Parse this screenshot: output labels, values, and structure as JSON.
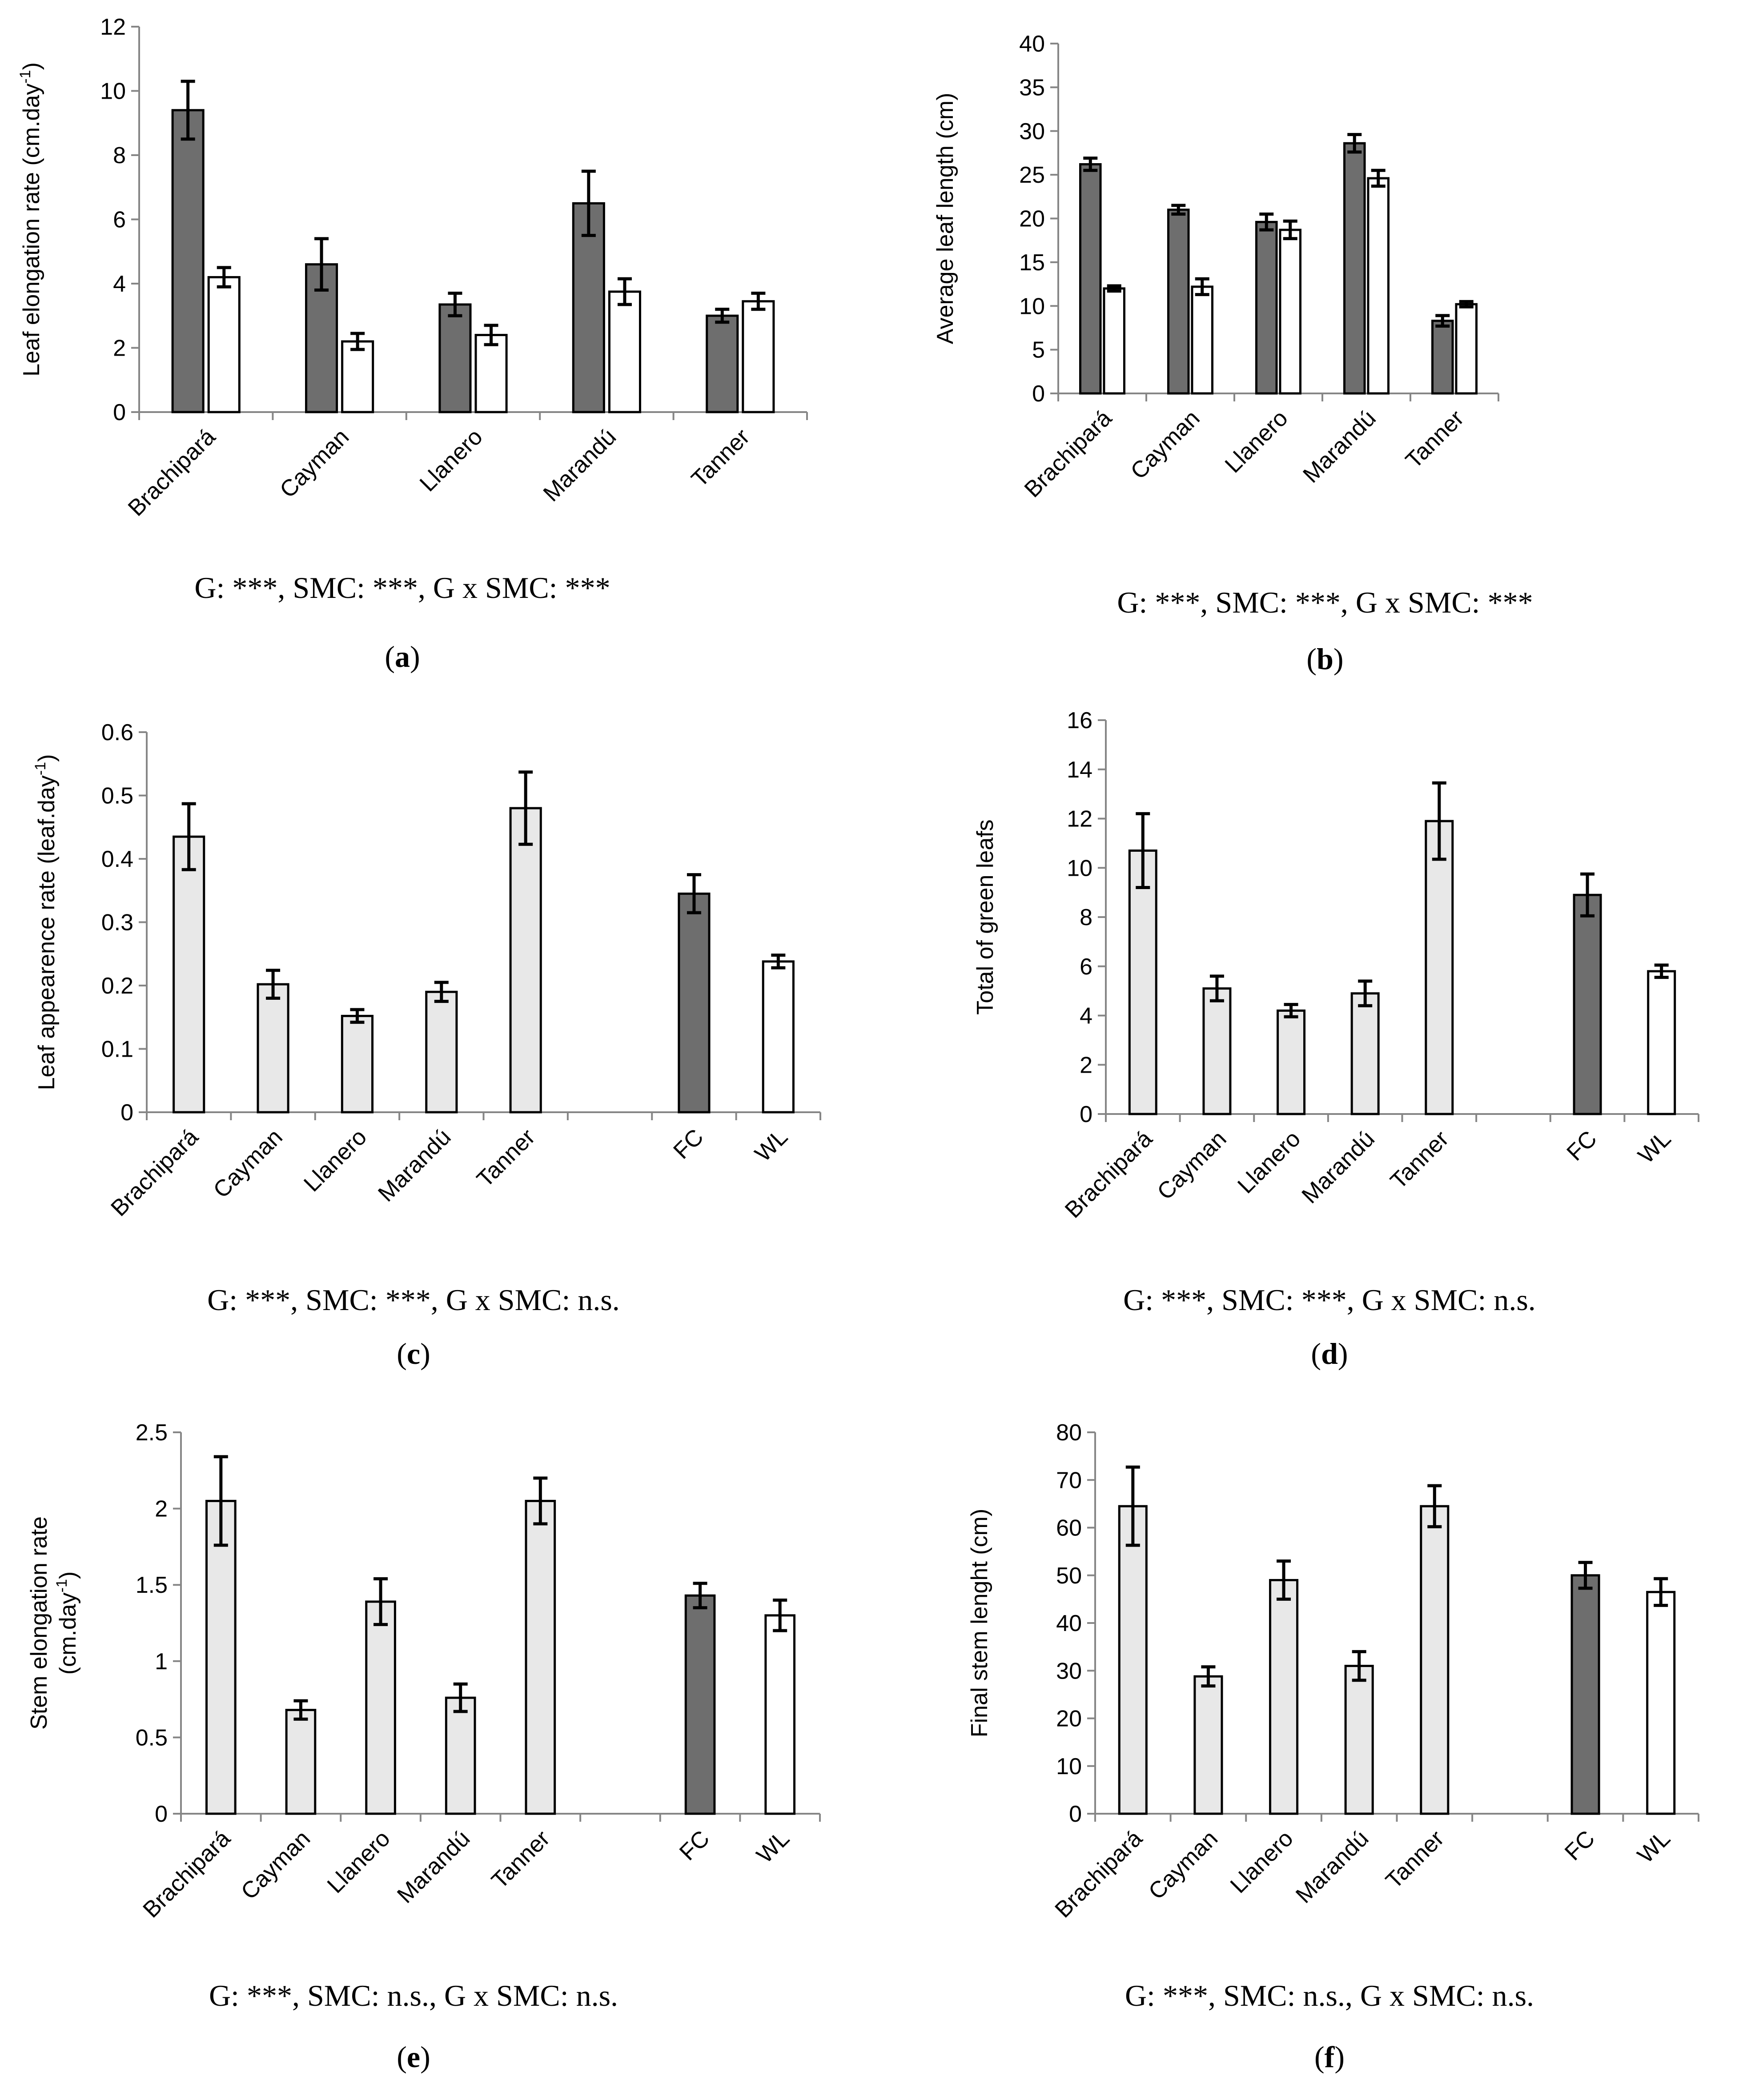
{
  "colors": {
    "fc": "#6e6e6e",
    "wl": "#ffffff",
    "genotype": "#e8e8e8",
    "stroke": "#000000"
  },
  "chart_data": [
    {
      "id": "a",
      "type": "bar",
      "label": "a",
      "ylabel": "Leaf elongation rate (cm.day",
      "ylabel_sup": "-1",
      "ylabel_tail": ")",
      "ylim": [
        0,
        12
      ],
      "ytick_step": 2,
      "ytick_decimals": 0,
      "categories": [
        "Brachipará",
        "Cayman",
        "Llanero",
        "Marandú",
        "Tanner"
      ],
      "series": [
        {
          "name": "FC",
          "color": "#6e6e6e",
          "values": [
            9.4,
            4.6,
            3.35,
            6.5,
            3.0
          ],
          "errors": [
            0.9,
            0.8,
            0.35,
            1.0,
            0.2
          ]
        },
        {
          "name": "WL",
          "color": "#ffffff",
          "values": [
            4.2,
            2.2,
            2.4,
            3.75,
            3.45
          ],
          "errors": [
            0.3,
            0.25,
            0.3,
            0.4,
            0.25
          ]
        }
      ],
      "significance": "G: ***, SMC: ***, G x SMC: ***"
    },
    {
      "id": "b",
      "type": "bar",
      "label": "b",
      "ylabel": "Average leaf length (cm)",
      "ylabel_sup": "",
      "ylabel_tail": "",
      "ylim": [
        0,
        40
      ],
      "ytick_step": 5,
      "ytick_decimals": 0,
      "categories": [
        "Brachipará",
        "Cayman",
        "Llanero",
        "Marandú",
        "Tanner"
      ],
      "series": [
        {
          "name": "FC",
          "color": "#6e6e6e",
          "values": [
            26.2,
            21.0,
            19.6,
            28.6,
            8.3
          ],
          "errors": [
            0.7,
            0.5,
            0.9,
            1.0,
            0.6
          ]
        },
        {
          "name": "WL",
          "color": "#ffffff",
          "values": [
            12.0,
            12.2,
            18.7,
            24.6,
            10.2
          ],
          "errors": [
            0.3,
            0.9,
            1.0,
            0.9,
            0.3
          ]
        }
      ],
      "significance": "G: ***, SMC: ***, G x SMC: ***"
    },
    {
      "id": "c",
      "type": "bar",
      "label": "c",
      "ylabel": "Leaf appearence rate (leaf.day",
      "ylabel_sup": "-1",
      "ylabel_tail": ")",
      "ylim": [
        0,
        0.6
      ],
      "ytick_step": 0.1,
      "ytick_decimals": 1,
      "categories": [
        "Brachipará",
        "Cayman",
        "Llanero",
        "Marandú",
        "Tanner",
        "",
        "FC",
        "WL"
      ],
      "bars": [
        {
          "value": 0.435,
          "error": 0.052,
          "color": "#e8e8e8"
        },
        {
          "value": 0.202,
          "error": 0.022,
          "color": "#e8e8e8"
        },
        {
          "value": 0.152,
          "error": 0.01,
          "color": "#e8e8e8"
        },
        {
          "value": 0.19,
          "error": 0.015,
          "color": "#e8e8e8"
        },
        {
          "value": 0.48,
          "error": 0.057,
          "color": "#e8e8e8"
        },
        null,
        {
          "value": 0.345,
          "error": 0.03,
          "color": "#6e6e6e"
        },
        {
          "value": 0.238,
          "error": 0.01,
          "color": "#ffffff"
        }
      ],
      "significance": "G: ***, SMC: ***, G x SMC: n.s."
    },
    {
      "id": "d",
      "type": "bar",
      "label": "d",
      "ylabel": "Total of green leafs",
      "ylabel_sup": "",
      "ylabel_tail": "",
      "ylim": [
        0,
        16
      ],
      "ytick_step": 2,
      "ytick_decimals": 0,
      "categories": [
        "Brachipará",
        "Cayman",
        "Llanero",
        "Marandú",
        "Tanner",
        "",
        "FC",
        "WL"
      ],
      "bars": [
        {
          "value": 10.7,
          "error": 1.5,
          "color": "#e8e8e8"
        },
        {
          "value": 5.1,
          "error": 0.5,
          "color": "#e8e8e8"
        },
        {
          "value": 4.2,
          "error": 0.25,
          "color": "#e8e8e8"
        },
        {
          "value": 4.9,
          "error": 0.5,
          "color": "#e8e8e8"
        },
        {
          "value": 11.9,
          "error": 1.55,
          "color": "#e8e8e8"
        },
        null,
        {
          "value": 8.9,
          "error": 0.85,
          "color": "#6e6e6e"
        },
        {
          "value": 5.8,
          "error": 0.25,
          "color": "#ffffff"
        }
      ],
      "significance": "G: ***, SMC: ***, G x SMC: n.s."
    },
    {
      "id": "e",
      "type": "bar",
      "label": "e",
      "ylabel": "Stem elongation rate",
      "ylabel2": "(cm.day",
      "ylabel_sup": "-1",
      "ylabel_tail": ")",
      "ylim": [
        0,
        2.5
      ],
      "ytick_step": 0.5,
      "ytick_decimals": 1,
      "categories": [
        "Brachipará",
        "Cayman",
        "Llanero",
        "Marandú",
        "Tanner",
        "",
        "FC",
        "WL"
      ],
      "bars": [
        {
          "value": 2.05,
          "error": 0.29,
          "color": "#e8e8e8"
        },
        {
          "value": 0.68,
          "error": 0.06,
          "color": "#e8e8e8"
        },
        {
          "value": 1.39,
          "error": 0.15,
          "color": "#e8e8e8"
        },
        {
          "value": 0.76,
          "error": 0.09,
          "color": "#e8e8e8"
        },
        {
          "value": 2.05,
          "error": 0.15,
          "color": "#e8e8e8"
        },
        null,
        {
          "value": 1.43,
          "error": 0.08,
          "color": "#6e6e6e"
        },
        {
          "value": 1.3,
          "error": 0.1,
          "color": "#ffffff"
        }
      ],
      "significance": "G: ***, SMC: n.s., G x SMC: n.s."
    },
    {
      "id": "f",
      "type": "bar",
      "label": "f",
      "ylabel": "Final stem lenght (cm)",
      "ylabel_sup": "",
      "ylabel_tail": "",
      "ylim": [
        0,
        80
      ],
      "ytick_step": 10,
      "ytick_decimals": 0,
      "categories": [
        "Brachipará",
        "Cayman",
        "Llanero",
        "Marandú",
        "Tanner",
        "",
        "FC",
        "WL"
      ],
      "bars": [
        {
          "value": 64.5,
          "error": 8.2,
          "color": "#e8e8e8"
        },
        {
          "value": 28.8,
          "error": 2.0,
          "color": "#e8e8e8"
        },
        {
          "value": 49.0,
          "error": 4.0,
          "color": "#e8e8e8"
        },
        {
          "value": 31.0,
          "error": 3.0,
          "color": "#e8e8e8"
        },
        {
          "value": 64.5,
          "error": 4.3,
          "color": "#e8e8e8"
        },
        null,
        {
          "value": 50.0,
          "error": 2.7,
          "color": "#6e6e6e"
        },
        {
          "value": 46.5,
          "error": 2.8,
          "color": "#ffffff"
        }
      ],
      "significance": "G: ***, SMC: n.s., G x SMC: n.s."
    }
  ]
}
